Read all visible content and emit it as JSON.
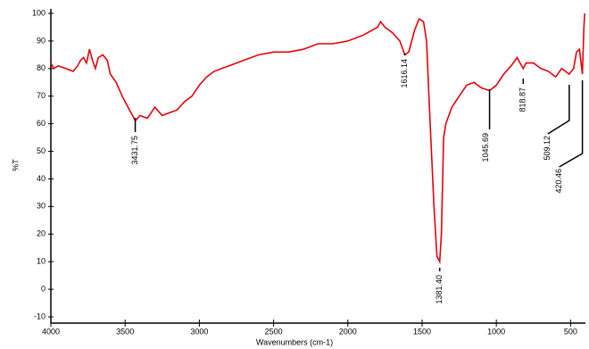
{
  "chart_data": {
    "type": "line",
    "xlabel": "Wavenumbers (cm-1)",
    "ylabel": "%T",
    "x": [
      4000,
      3980,
      3950,
      3900,
      3850,
      3820,
      3800,
      3780,
      3760,
      3740,
      3720,
      3700,
      3680,
      3650,
      3620,
      3600,
      3560,
      3520,
      3480,
      3450,
      3431.75,
      3400,
      3350,
      3300,
      3250,
      3200,
      3150,
      3100,
      3050,
      3000,
      2950,
      2900,
      2850,
      2800,
      2700,
      2600,
      2500,
      2400,
      2300,
      2200,
      2100,
      2000,
      1900,
      1800,
      1780,
      1750,
      1700,
      1650,
      1616.14,
      1590,
      1550,
      1520,
      1490,
      1470,
      1450,
      1420,
      1400,
      1381.4,
      1370,
      1355,
      1340,
      1300,
      1250,
      1200,
      1150,
      1100,
      1045.69,
      1000,
      950,
      900,
      860,
      840,
      818.87,
      800,
      750,
      700,
      650,
      600,
      560,
      509.12,
      480,
      460,
      440,
      420.46,
      410,
      405
    ],
    "series": [
      {
        "name": "%T",
        "color": "#e8000b",
        "values": [
          82,
          80,
          81,
          80,
          79,
          81,
          83,
          84,
          82,
          87,
          83,
          80,
          84,
          85,
          83,
          78,
          75,
          70,
          66,
          63,
          61,
          63,
          62,
          66,
          63,
          64,
          65,
          68,
          70,
          74,
          77,
          79,
          80,
          81,
          83,
          85,
          86,
          86,
          87,
          89,
          89,
          90,
          92,
          95,
          97,
          95,
          93,
          90,
          85,
          86,
          94,
          98,
          97,
          90,
          65,
          30,
          12,
          10,
          20,
          55,
          60,
          66,
          70,
          74,
          75,
          73,
          72,
          74,
          78,
          81,
          84,
          82,
          80,
          82,
          82,
          80,
          79,
          77,
          80,
          78,
          80,
          86,
          87,
          78,
          95,
          100
        ]
      }
    ],
    "annotations": [
      {
        "label": "3431.75",
        "x": 3431.75
      },
      {
        "label": "1616.14",
        "x": 1616.14
      },
      {
        "label": "1381.40",
        "x": 1381.4
      },
      {
        "label": "1045.69",
        "x": 1045.69
      },
      {
        "label": "818.87",
        "x": 818.87
      },
      {
        "label": "509.12",
        "x": 509.12
      },
      {
        "label": "420.46",
        "x": 420.46
      }
    ],
    "xlim": [
      4000,
      400
    ],
    "ylim": [
      -10,
      100
    ],
    "xticks": [
      4000,
      3500,
      3000,
      2500,
      2000,
      1500,
      1000,
      500
    ],
    "yticks": [
      -10,
      0,
      10,
      20,
      30,
      40,
      50,
      60,
      70,
      80,
      90,
      100
    ]
  }
}
